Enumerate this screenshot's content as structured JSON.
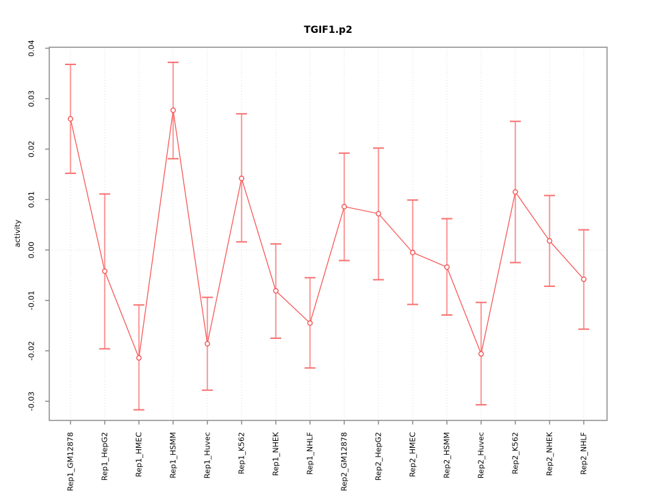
{
  "page": {
    "background": "#ffffff"
  },
  "chart_data": {
    "type": "line",
    "title": "TGIF1.p2",
    "ylabel": "activity",
    "xlabel": "",
    "categories": [
      "Rep1_GM12878",
      "Rep1_HepG2",
      "Rep1_HMEC",
      "Rep1_HSMM",
      "Rep1_Huvec",
      "Rep1_K562",
      "Rep1_NHEK",
      "Rep1_NHLF",
      "Rep2_GM12878",
      "Rep2_HepG2",
      "Rep2_HMEC",
      "Rep2_HSMM",
      "Rep2_Huvec",
      "Rep2_K562",
      "Rep2_NHEK",
      "Rep2_NHLF"
    ],
    "series": [
      {
        "name": "activity",
        "marker": "open-circle",
        "values": [
          0.026,
          -0.0042,
          -0.0214,
          0.0277,
          -0.0186,
          0.0142,
          -0.0081,
          -0.0145,
          0.0086,
          0.0072,
          -0.0005,
          -0.0034,
          -0.0206,
          0.0115,
          0.0018,
          -0.0058
        ],
        "ci_high": [
          0.0368,
          0.0111,
          -0.0109,
          0.0372,
          -0.0094,
          0.027,
          0.0012,
          -0.0055,
          0.0192,
          0.0202,
          0.0099,
          0.0062,
          -0.0104,
          0.0255,
          0.0108,
          0.004
        ],
        "ci_low": [
          0.0152,
          -0.0196,
          -0.0317,
          0.0181,
          -0.0278,
          0.0016,
          -0.0175,
          -0.0234,
          -0.0021,
          -0.0059,
          -0.0108,
          -0.0129,
          -0.0307,
          -0.0025,
          -0.0072,
          -0.0157
        ]
      }
    ],
    "ytick_labels": [
      "-0.03",
      "-0.02",
      "-0.01",
      "0.00",
      "0.01",
      "0.02",
      "0.03",
      "0.04"
    ],
    "ylim": [
      -0.0338,
      0.0402
    ],
    "grid": {
      "vertical_per_category": true,
      "horizontal_at_zero": true,
      "style": "dotted"
    },
    "legend": "none",
    "colors": {
      "series_line": "#f65a5a",
      "marker_stroke": "#f24d4d",
      "marker_fill": "#ffffff",
      "error_bar": "#fba0a0",
      "error_cap": "#f87070",
      "gridline": "#d9d9d9",
      "axis_frame": "#8c8c8c",
      "tick_text": "#000000"
    }
  }
}
